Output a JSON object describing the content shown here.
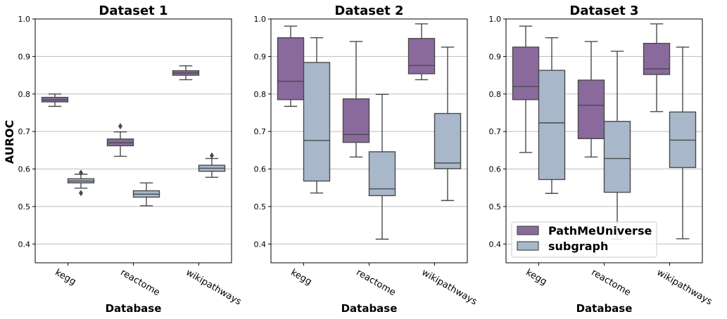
{
  "colors": {
    "PathMeUniverse": "#8a6a9d",
    "subgraph": "#a8b8ca",
    "edge": "#4a4a4a",
    "grid": "#bdbdbd"
  },
  "shared_ylabel": "AUROC",
  "legend": [
    "PathMeUniverse",
    "subgraph"
  ],
  "chart_data": [
    {
      "type": "box",
      "title": "Dataset 1",
      "xlabel": "Database",
      "ylabel": "AUROC",
      "categories": [
        "kegg",
        "reactome",
        "wikipathways"
      ],
      "ylim": [
        0.35,
        1.0
      ],
      "yticks": [
        0.4,
        0.5,
        0.6,
        0.7,
        0.8,
        0.9,
        1.0
      ],
      "ytick_labels": [
        "0.4",
        "0.5",
        "0.6",
        "0.7",
        "0.8",
        "0.9",
        "1.0"
      ],
      "grid": true,
      "series": [
        {
          "name": "PathMeUniverse",
          "boxes": [
            {
              "whislo": 0.767,
              "q1": 0.779,
              "med": 0.784,
              "q3": 0.791,
              "whishi": 0.8,
              "fliers": []
            },
            {
              "whislo": 0.634,
              "q1": 0.662,
              "med": 0.67,
              "q3": 0.68,
              "whishi": 0.699,
              "fliers": [
                0.714
              ]
            },
            {
              "whislo": 0.838,
              "q1": 0.85,
              "med": 0.856,
              "q3": 0.862,
              "whishi": 0.875,
              "fliers": []
            }
          ]
        },
        {
          "name": "subgraph",
          "boxes": [
            {
              "whislo": 0.549,
              "q1": 0.563,
              "med": 0.568,
              "q3": 0.574,
              "whishi": 0.586,
              "fliers": [
                0.536,
                0.59
              ]
            },
            {
              "whislo": 0.502,
              "q1": 0.525,
              "med": 0.533,
              "q3": 0.542,
              "whishi": 0.563,
              "fliers": []
            },
            {
              "whislo": 0.578,
              "q1": 0.594,
              "med": 0.602,
              "q3": 0.61,
              "whishi": 0.628,
              "fliers": [
                0.636
              ]
            }
          ]
        }
      ]
    },
    {
      "type": "box",
      "title": "Dataset 2",
      "xlabel": "Database",
      "ylabel": "",
      "categories": [
        "kegg",
        "reactome",
        "wikipathways"
      ],
      "ylim": [
        0.35,
        1.0
      ],
      "yticks": [
        0.4,
        0.5,
        0.6,
        0.7,
        0.8,
        0.9,
        1.0
      ],
      "ytick_labels": [
        "0.4",
        "0.5",
        "0.6",
        "0.7",
        "0.8",
        "0.9",
        "1.0"
      ],
      "grid": true,
      "series": [
        {
          "name": "PathMeUniverse",
          "boxes": [
            {
              "whislo": 0.767,
              "q1": 0.785,
              "med": 0.834,
              "q3": 0.95,
              "whishi": 0.981,
              "fliers": []
            },
            {
              "whislo": 0.632,
              "q1": 0.671,
              "med": 0.692,
              "q3": 0.787,
              "whishi": 0.94,
              "fliers": []
            },
            {
              "whislo": 0.838,
              "q1": 0.854,
              "med": 0.876,
              "q3": 0.948,
              "whishi": 0.987,
              "fliers": []
            }
          ]
        },
        {
          "name": "subgraph",
          "boxes": [
            {
              "whislo": 0.536,
              "q1": 0.568,
              "med": 0.676,
              "q3": 0.884,
              "whishi": 0.95,
              "fliers": []
            },
            {
              "whislo": 0.413,
              "q1": 0.529,
              "med": 0.547,
              "q3": 0.646,
              "whishi": 0.799,
              "fliers": []
            },
            {
              "whislo": 0.516,
              "q1": 0.601,
              "med": 0.616,
              "q3": 0.748,
              "whishi": 0.925,
              "fliers": []
            }
          ]
        }
      ]
    },
    {
      "type": "box",
      "title": "Dataset 3",
      "xlabel": "Database",
      "ylabel": "",
      "categories": [
        "kegg",
        "reactome",
        "wikipathways"
      ],
      "ylim": [
        0.35,
        1.0
      ],
      "yticks": [
        0.4,
        0.5,
        0.6,
        0.7,
        0.8,
        0.9,
        1.0
      ],
      "ytick_labels": [
        "0.4",
        "0.5",
        "0.6",
        "0.7",
        "0.8",
        "0.9",
        "1.0"
      ],
      "grid": true,
      "legend_position": "lower-left",
      "series": [
        {
          "name": "PathMeUniverse",
          "boxes": [
            {
              "whislo": 0.644,
              "q1": 0.785,
              "med": 0.82,
              "q3": 0.925,
              "whishi": 0.981,
              "fliers": []
            },
            {
              "whislo": 0.632,
              "q1": 0.681,
              "med": 0.77,
              "q3": 0.837,
              "whishi": 0.94,
              "fliers": []
            },
            {
              "whislo": 0.753,
              "q1": 0.852,
              "med": 0.867,
              "q3": 0.935,
              "whishi": 0.987,
              "fliers": []
            }
          ]
        },
        {
          "name": "subgraph",
          "boxes": [
            {
              "whislo": 0.535,
              "q1": 0.572,
              "med": 0.723,
              "q3": 0.863,
              "whishi": 0.95,
              "fliers": []
            },
            {
              "whislo": 0.413,
              "q1": 0.538,
              "med": 0.628,
              "q3": 0.727,
              "whishi": 0.914,
              "fliers": []
            },
            {
              "whislo": 0.414,
              "q1": 0.604,
              "med": 0.677,
              "q3": 0.752,
              "whishi": 0.925,
              "fliers": []
            }
          ]
        }
      ]
    }
  ]
}
